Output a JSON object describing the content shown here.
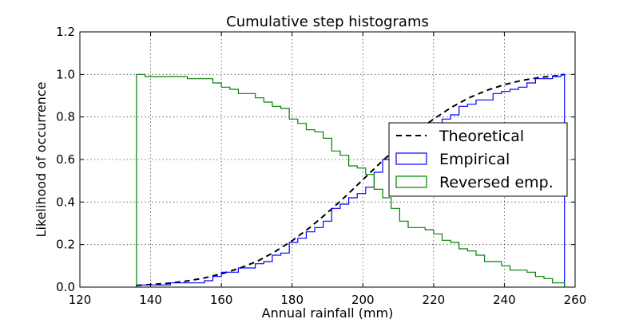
{
  "chart_data": {
    "type": "line",
    "title": "Cumulative step histograms",
    "xlabel": "Annual rainfall (mm)",
    "ylabel": "Likelihood of occurrence",
    "xlim": [
      120,
      260
    ],
    "ylim": [
      0.0,
      1.2
    ],
    "xticks": [
      120,
      140,
      160,
      180,
      200,
      220,
      240,
      260
    ],
    "yticks": [
      0.0,
      0.2,
      0.4,
      0.6,
      0.8,
      1.0,
      1.2
    ],
    "xtick_labels": [
      "120",
      "140",
      "160",
      "180",
      "200",
      "220",
      "240",
      "260"
    ],
    "ytick_labels": [
      "0.0",
      "0.2",
      "0.4",
      "0.6",
      "0.8",
      "1.0",
      "1.2"
    ],
    "grid": true,
    "legend_position": "right",
    "series": [
      {
        "name": "Theoretical",
        "style": "dashed",
        "color": "#000000",
        "x": [
          136,
          140,
          145,
          150,
          155,
          160,
          165,
          170,
          175,
          180,
          185,
          190,
          195,
          200,
          205,
          210,
          215,
          220,
          225,
          230,
          235,
          240,
          245,
          250,
          255,
          257
        ],
        "y": [
          0.008,
          0.012,
          0.018,
          0.028,
          0.042,
          0.062,
          0.088,
          0.12,
          0.165,
          0.218,
          0.28,
          0.35,
          0.425,
          0.505,
          0.585,
          0.66,
          0.73,
          0.79,
          0.845,
          0.89,
          0.925,
          0.952,
          0.972,
          0.986,
          0.994,
          1.0
        ]
      },
      {
        "name": "Empirical",
        "style": "step",
        "color": "#0000ff",
        "x": [
          136,
          138.4,
          140.8,
          143.2,
          145.6,
          148.0,
          150.4,
          152.8,
          155.2,
          157.6,
          160.0,
          162.4,
          164.8,
          167.2,
          169.6,
          172.0,
          174.4,
          176.8,
          179.2,
          181.6,
          184.0,
          186.4,
          188.8,
          191.2,
          193.6,
          196.0,
          198.4,
          200.8,
          203.2,
          205.6,
          208.0,
          210.4,
          212.8,
          215.2,
          217.6,
          220.0,
          222.4,
          224.8,
          227.2,
          229.6,
          232.0,
          234.4,
          236.8,
          239.2,
          241.6,
          244.0,
          246.4,
          248.8,
          251.2,
          253.6,
          256.0,
          257
        ],
        "y": [
          0.01,
          0.01,
          0.01,
          0.01,
          0.02,
          0.02,
          0.02,
          0.02,
          0.03,
          0.05,
          0.07,
          0.07,
          0.09,
          0.09,
          0.11,
          0.12,
          0.15,
          0.16,
          0.21,
          0.23,
          0.26,
          0.28,
          0.31,
          0.37,
          0.39,
          0.42,
          0.44,
          0.47,
          0.54,
          0.6,
          0.63,
          0.66,
          0.69,
          0.72,
          0.75,
          0.76,
          0.79,
          0.81,
          0.85,
          0.86,
          0.88,
          0.88,
          0.91,
          0.92,
          0.93,
          0.94,
          0.96,
          0.98,
          0.98,
          0.99,
          1.0,
          1.0
        ]
      },
      {
        "name": "Reversed emp.",
        "style": "step",
        "color": "#008000",
        "x": [
          136,
          138.4,
          140.8,
          143.2,
          145.6,
          148.0,
          150.4,
          152.8,
          155.2,
          157.6,
          160.0,
          162.4,
          164.8,
          167.2,
          169.6,
          172.0,
          174.4,
          176.8,
          179.2,
          181.6,
          184.0,
          186.4,
          188.8,
          191.2,
          193.6,
          196.0,
          198.4,
          200.8,
          203.2,
          205.6,
          208.0,
          210.4,
          212.8,
          215.2,
          217.6,
          220.0,
          222.4,
          224.8,
          227.2,
          229.6,
          232.0,
          234.4,
          236.8,
          239.2,
          241.6,
          244.0,
          246.4,
          248.8,
          251.2,
          253.6,
          256.0,
          257
        ],
        "y": [
          1.0,
          0.99,
          0.99,
          0.99,
          0.99,
          0.99,
          0.98,
          0.98,
          0.98,
          0.96,
          0.94,
          0.93,
          0.91,
          0.91,
          0.89,
          0.87,
          0.85,
          0.84,
          0.79,
          0.77,
          0.74,
          0.73,
          0.7,
          0.64,
          0.62,
          0.57,
          0.56,
          0.53,
          0.46,
          0.42,
          0.37,
          0.31,
          0.28,
          0.28,
          0.27,
          0.25,
          0.22,
          0.21,
          0.18,
          0.17,
          0.15,
          0.12,
          0.12,
          0.1,
          0.08,
          0.08,
          0.07,
          0.05,
          0.04,
          0.02,
          0.02,
          0.02
        ]
      }
    ]
  }
}
